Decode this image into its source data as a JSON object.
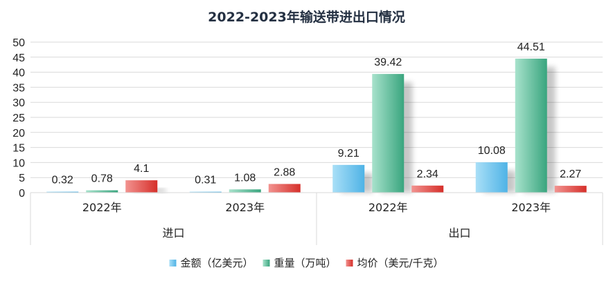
{
  "chart_data": {
    "type": "bar",
    "title": "2022-2023年输送带进出口情况",
    "groups": [
      {
        "label": "进口",
        "categories": [
          "2022年",
          "2023年"
        ]
      },
      {
        "label": "出口",
        "categories": [
          "2022年",
          "2023年"
        ]
      }
    ],
    "series": [
      {
        "name": "金额（亿美元）",
        "values": [
          0.32,
          0.31,
          9.21,
          10.08
        ],
        "color": "#6ec6ee"
      },
      {
        "name": "重量（万吨）",
        "values": [
          0.78,
          1.08,
          39.42,
          44.51
        ],
        "color": "#5fc3a0"
      },
      {
        "name": "均价（美元/千克）",
        "values": [
          4.1,
          2.88,
          2.34,
          2.27
        ],
        "color": "#e8504a"
      }
    ],
    "data_labels": [
      [
        "0.32",
        "0.31",
        "9.21",
        "10.08"
      ],
      [
        "0.78",
        "1.08",
        "39.42",
        "44.51"
      ],
      [
        "4.1",
        "2.88",
        "2.34",
        "2.27"
      ]
    ],
    "ylim": [
      0,
      50
    ],
    "yticks": [
      0,
      5,
      10,
      15,
      20,
      25,
      30,
      35,
      40,
      45,
      50
    ],
    "grid": true,
    "legend": "bottom"
  }
}
